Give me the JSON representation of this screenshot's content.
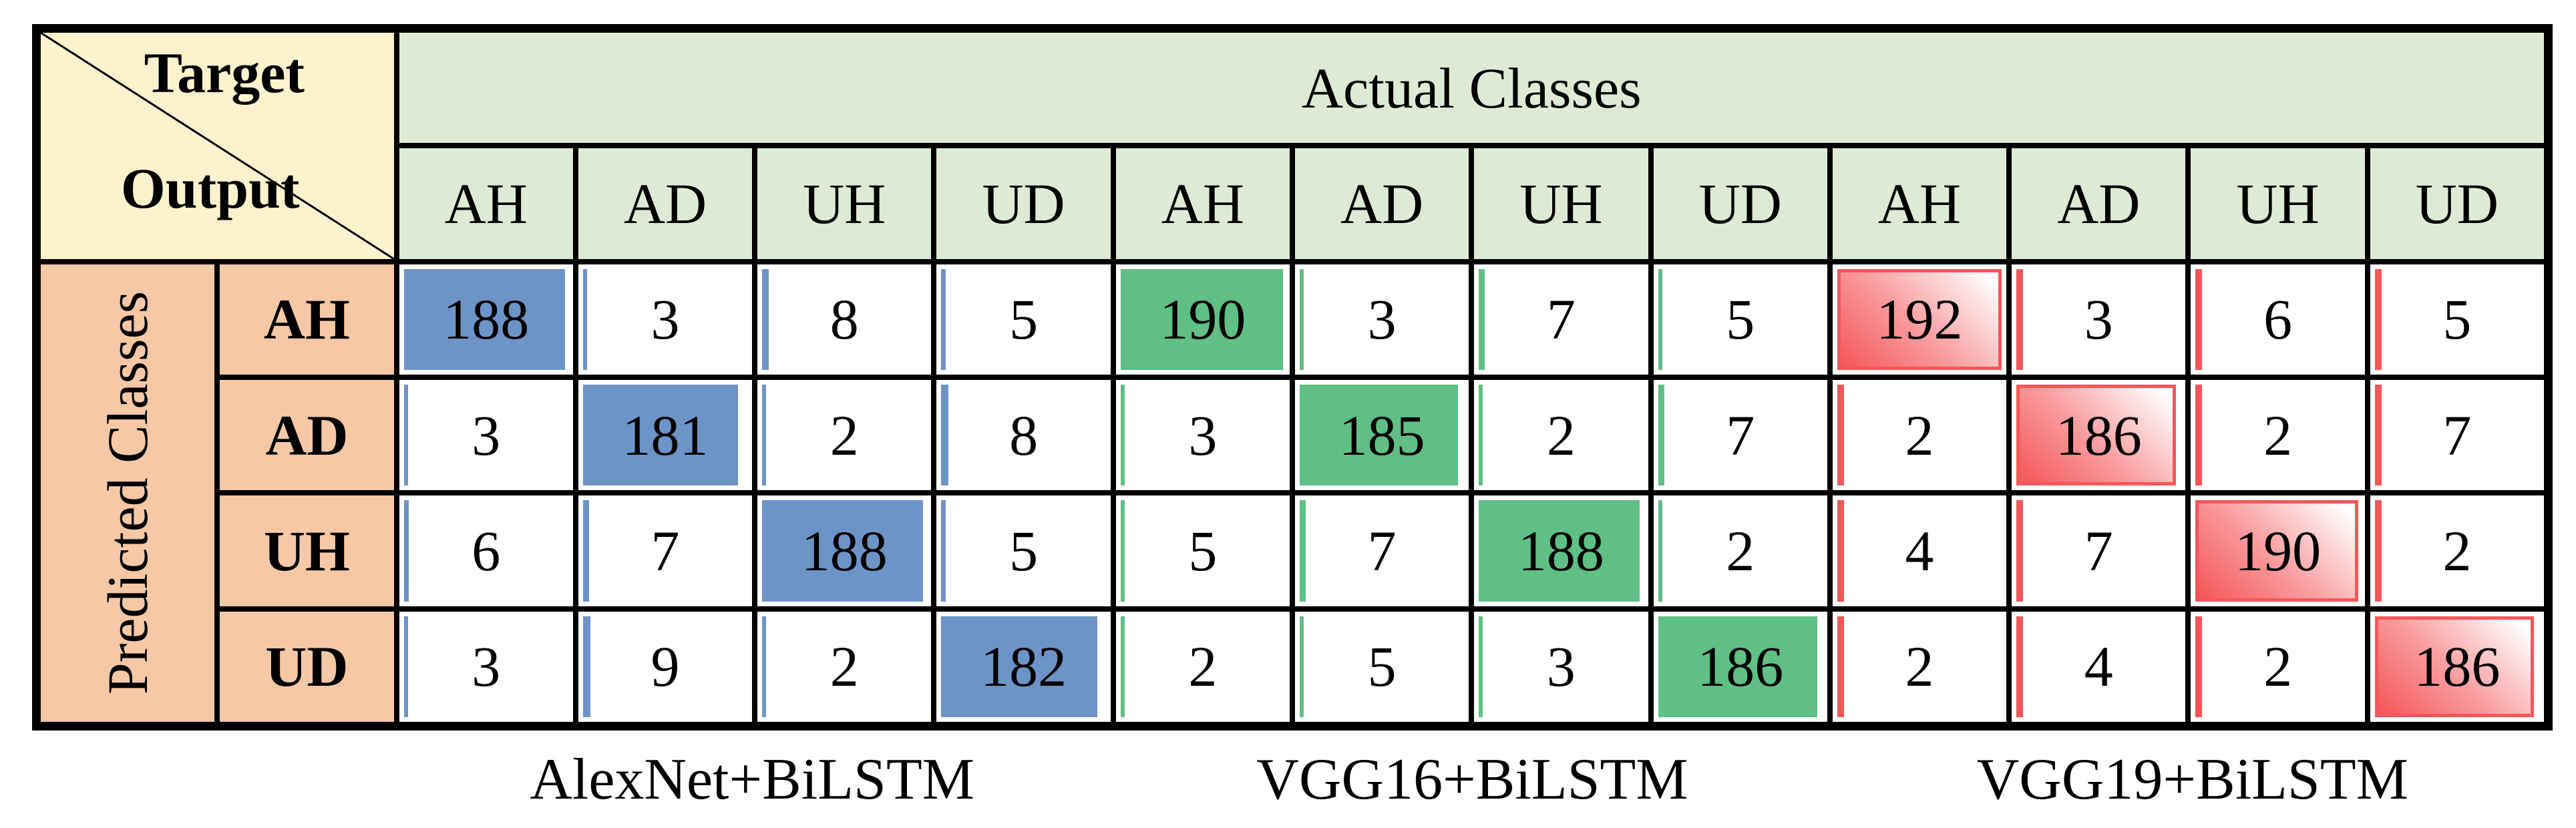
{
  "table": {
    "corner": {
      "target_label": "Target",
      "output_label": "Output"
    },
    "actual_classes_header": "Actual Classes",
    "predicted_classes_header": "Predicted Classes",
    "class_labels": [
      "AH",
      "AD",
      "UH",
      "UD"
    ],
    "bar_max": 192,
    "models": [
      {
        "name": "AlexNet+BiLSTM",
        "bar_color": "#6D94C7",
        "bar_style": "solid",
        "matrix": [
          [
            188,
            3,
            8,
            5
          ],
          [
            3,
            181,
            2,
            8
          ],
          [
            6,
            7,
            188,
            5
          ],
          [
            3,
            9,
            2,
            182
          ]
        ]
      },
      {
        "name": "VGG16+BiLSTM",
        "bar_color": "#5FBF85",
        "bar_style": "solid",
        "matrix": [
          [
            190,
            3,
            7,
            5
          ],
          [
            3,
            185,
            2,
            7
          ],
          [
            5,
            7,
            188,
            2
          ],
          [
            2,
            5,
            3,
            186
          ]
        ]
      },
      {
        "name": "VGG19+BiLSTM",
        "bar_color": "#F4565A",
        "bar_style": "gradient",
        "gradient_mid": "#F99B9D",
        "gradient_end": "#FFFFFF",
        "matrix": [
          [
            192,
            3,
            6,
            5
          ],
          [
            2,
            186,
            2,
            7
          ],
          [
            4,
            7,
            190,
            2
          ],
          [
            2,
            4,
            2,
            186
          ]
        ]
      }
    ]
  },
  "colors": {
    "corner_bg": "#FDF2CE",
    "header_bg": "#DFEAD6",
    "predicted_bg": "#F6C8A6",
    "cell_bg": "#FFFFFF",
    "border": "#000000"
  },
  "chart_data": {
    "type": "heatmap",
    "title": "",
    "xlabel": "Actual Classes",
    "ylabel": "Predicted Classes",
    "categories": [
      "AH",
      "AD",
      "UH",
      "UD"
    ],
    "value_range": [
      2,
      192
    ],
    "legend_position": "none",
    "grid": true,
    "series": [
      {
        "name": "AlexNet+BiLSTM",
        "rows_predicted_cols_actual": [
          [
            188,
            3,
            8,
            5
          ],
          [
            3,
            181,
            2,
            8
          ],
          [
            6,
            7,
            188,
            5
          ],
          [
            3,
            9,
            2,
            182
          ]
        ]
      },
      {
        "name": "VGG16+BiLSTM",
        "rows_predicted_cols_actual": [
          [
            190,
            3,
            7,
            5
          ],
          [
            3,
            185,
            2,
            7
          ],
          [
            5,
            7,
            188,
            2
          ],
          [
            2,
            5,
            3,
            186
          ]
        ]
      },
      {
        "name": "VGG19+BiLSTM",
        "rows_predicted_cols_actual": [
          [
            192,
            3,
            6,
            5
          ],
          [
            2,
            186,
            2,
            7
          ],
          [
            4,
            7,
            190,
            2
          ],
          [
            2,
            4,
            2,
            186
          ]
        ]
      }
    ]
  }
}
